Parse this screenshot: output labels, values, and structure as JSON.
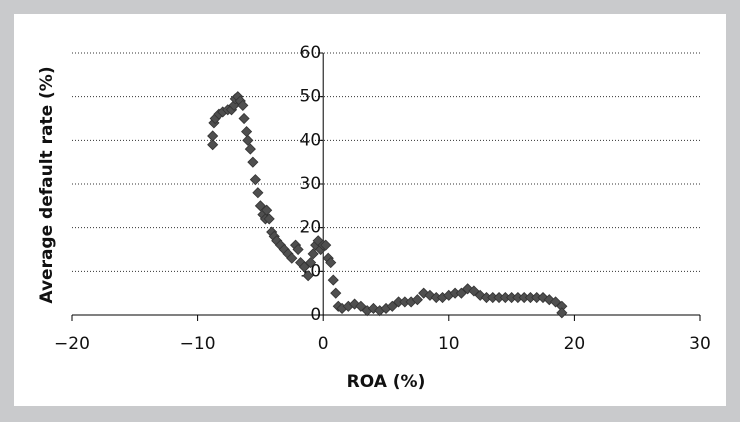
{
  "chart_data": {
    "type": "scatter",
    "x_label": "ROA (%)",
    "y_label": "Average default rate (%)",
    "marker": "diamond",
    "color": "#4f4f4f",
    "grid": true,
    "xlim": [
      -20,
      30
    ],
    "ylim": [
      0,
      60
    ],
    "xticks": [
      {
        "value": -20,
        "label": "−20"
      },
      {
        "value": -10,
        "label": "−10"
      },
      0,
      10,
      20,
      30
    ],
    "yticks": [
      0,
      10,
      20,
      30,
      40,
      50,
      60
    ],
    "x": [
      -8.8,
      -8.8,
      -8.7,
      -8.6,
      -8.3,
      -8,
      -7.6,
      -7.3,
      -7.1,
      -7,
      -6.8,
      -6.6,
      -6.4,
      -6.3,
      -6.1,
      -6,
      -5.8,
      -5.6,
      -5.4,
      -5.2,
      -5,
      -4.8,
      -4.6,
      -4.5,
      -4.3,
      -4.1,
      -3.9,
      -3.7,
      -3.4,
      -3.1,
      -2.8,
      -2.5,
      -2.2,
      -2,
      -1.8,
      -1.5,
      -1.2,
      -1,
      -0.8,
      -0.6,
      -0.4,
      -0.2,
      0,
      0.2,
      0.4,
      0.6,
      0.8,
      1,
      1.2,
      1.5,
      2,
      2.5,
      3,
      3.5,
      4,
      4.5,
      5,
      5.5,
      6,
      6.5,
      7,
      7.5,
      8,
      8.5,
      9,
      9.5,
      10,
      10.5,
      11,
      11.5,
      12,
      12.5,
      13,
      13.5,
      14,
      14.5,
      15,
      15.5,
      16,
      16.5,
      17,
      17.5,
      18,
      18.5,
      19,
      19
    ],
    "values": [
      39,
      41,
      44,
      45,
      46,
      46.5,
      47,
      47,
      48,
      49.5,
      50,
      49,
      48,
      45,
      42,
      40,
      38,
      35,
      31,
      28,
      25,
      23,
      22,
      24,
      22,
      19,
      18,
      17,
      16,
      15,
      14,
      13,
      16,
      15,
      12,
      11,
      9,
      12,
      14,
      16,
      17,
      15,
      16,
      16,
      13,
      12,
      8,
      5,
      2,
      1.5,
      2,
      2.5,
      2,
      1,
      1.5,
      1,
      1.5,
      2,
      3,
      3,
      3,
      3.5,
      5,
      4.5,
      4,
      4,
      4.5,
      5,
      5,
      6,
      5.5,
      4.5,
      4,
      4,
      4,
      4,
      4,
      4,
      4,
      4,
      4,
      4,
      3.5,
      3,
      2,
      0.5
    ]
  }
}
